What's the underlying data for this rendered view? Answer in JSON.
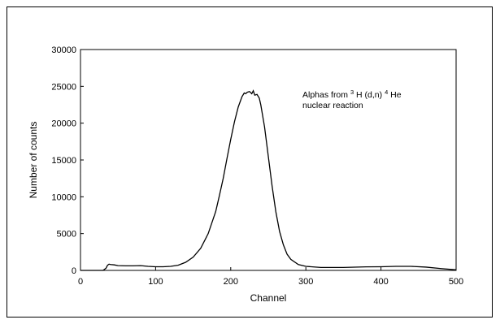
{
  "chart_data": {
    "type": "line",
    "xlabel": "Channel",
    "ylabel": "Number of counts",
    "xlim": [
      0,
      500
    ],
    "ylim": [
      0,
      30000
    ],
    "x_ticks": [
      0,
      100,
      200,
      300,
      400,
      500
    ],
    "y_ticks": [
      0,
      5000,
      10000,
      15000,
      20000,
      25000,
      30000
    ],
    "grid": false,
    "legend": "none",
    "line_color": "#000000",
    "annotation": {
      "line1_prefix": "Alphas from ",
      "sup1": "3",
      "line1_mid": "H (d,n) ",
      "sup2": "4",
      "line1_suffix": "He",
      "line2": "nuclear reaction"
    },
    "series": [
      {
        "x": [
          0,
          30,
          34,
          36,
          38,
          40,
          45,
          50,
          60,
          70,
          80,
          90,
          100,
          110,
          120,
          130,
          140,
          150,
          160,
          170,
          180,
          185,
          190,
          195,
          200,
          205,
          210,
          215,
          218,
          220,
          222,
          225,
          228,
          230,
          232,
          235,
          238,
          240,
          245,
          250,
          255,
          260,
          265,
          270,
          275,
          280,
          290,
          300,
          320,
          350,
          380,
          400,
          420,
          440,
          460,
          480,
          500
        ],
        "y": [
          0,
          0,
          300,
          700,
          850,
          800,
          750,
          650,
          620,
          620,
          650,
          550,
          500,
          500,
          550,
          700,
          1100,
          1800,
          3000,
          5000,
          8000,
          10200,
          12500,
          15200,
          17800,
          20200,
          22200,
          23600,
          24100,
          24000,
          24200,
          24300,
          24000,
          24400,
          23800,
          23900,
          23400,
          22500,
          19500,
          15500,
          11500,
          8000,
          5300,
          3500,
          2200,
          1500,
          800,
          550,
          400,
          400,
          480,
          500,
          550,
          550,
          450,
          250,
          80
        ]
      }
    ]
  }
}
